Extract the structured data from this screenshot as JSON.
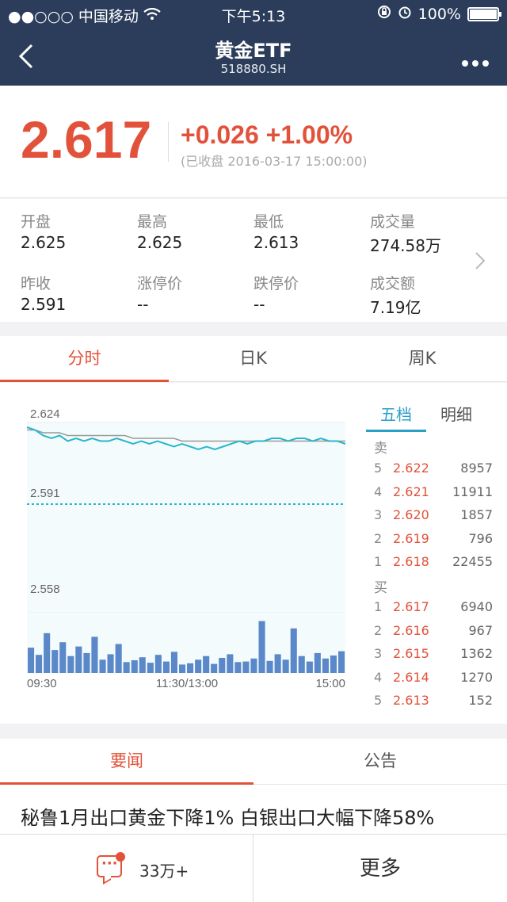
{
  "status_bar": {
    "carrier": "●●○○○ 中国移动",
    "time": "下午5:13",
    "battery": "100%",
    "battery_level": 1.0
  },
  "nav": {
    "title": "黄金ETF",
    "code": "518880.SH"
  },
  "quote": {
    "price": "2.617",
    "change": "+0.026 +1.00%",
    "status": "(已收盘 2016-03-17 15:00:00)"
  },
  "stats": [
    {
      "label": "开盘",
      "value": "2.625"
    },
    {
      "label": "最高",
      "value": "2.625"
    },
    {
      "label": "最低",
      "value": "2.613"
    },
    {
      "label": "成交量",
      "value": "274.58万"
    },
    {
      "label": "昨收",
      "value": "2.591"
    },
    {
      "label": "涨停价",
      "value": "--"
    },
    {
      "label": "跌停价",
      "value": "--"
    },
    {
      "label": "成交额",
      "value": "7.19亿"
    }
  ],
  "chart_tabs": [
    "分时",
    "日K",
    "周K"
  ],
  "chart_data": {
    "type": "line",
    "y_ticks": [
      "2.624",
      "2.591",
      "2.558"
    ],
    "x_ticks": [
      "09:30",
      "11:30/13:00",
      "15:00"
    ],
    "ylim": [
      2.558,
      2.624
    ],
    "prev_close": 2.591,
    "series": [
      {
        "values": [
          2.624,
          2.623,
          2.621,
          2.62,
          2.621,
          2.619,
          2.62,
          2.619,
          2.62,
          2.619,
          2.619,
          2.62,
          2.619,
          2.618,
          2.619,
          2.618,
          2.619,
          2.618,
          2.617,
          2.618,
          2.617,
          2.616,
          2.617,
          2.616,
          2.617,
          2.618,
          2.619,
          2.618,
          2.619,
          2.619,
          2.62,
          2.62,
          2.619,
          2.62,
          2.62,
          2.619,
          2.62,
          2.619,
          2.619,
          2.618
        ]
      },
      {
        "values": [
          2.623,
          2.623,
          2.622,
          2.622,
          2.622,
          2.621,
          2.621,
          2.621,
          2.621,
          2.621,
          2.621,
          2.621,
          2.621,
          2.62,
          2.62,
          2.62,
          2.62,
          2.62,
          2.62,
          2.619,
          2.619,
          2.619,
          2.619,
          2.619,
          2.619,
          2.619,
          2.619,
          2.619,
          2.619,
          2.619,
          2.619,
          2.619,
          2.619,
          2.619,
          2.619,
          2.619,
          2.619,
          2.619,
          2.619,
          2.619
        ]
      }
    ],
    "volume": [
      0.42,
      0.3,
      0.66,
      0.38,
      0.51,
      0.28,
      0.44,
      0.33,
      0.6,
      0.22,
      0.31,
      0.48,
      0.18,
      0.21,
      0.26,
      0.17,
      0.3,
      0.19,
      0.35,
      0.14,
      0.16,
      0.22,
      0.28,
      0.15,
      0.25,
      0.31,
      0.18,
      0.19,
      0.24,
      0.86,
      0.2,
      0.31,
      0.22,
      0.74,
      0.28,
      0.19,
      0.33,
      0.24,
      0.29,
      0.36
    ]
  },
  "orderbook": {
    "tabs": [
      "五档",
      "明细"
    ],
    "sell_label": "卖",
    "buy_label": "买",
    "sell": [
      {
        "level": "5",
        "price": "2.622",
        "volume": "8957"
      },
      {
        "level": "4",
        "price": "2.621",
        "volume": "11911"
      },
      {
        "level": "3",
        "price": "2.620",
        "volume": "1857"
      },
      {
        "level": "2",
        "price": "2.619",
        "volume": "796"
      },
      {
        "level": "1",
        "price": "2.618",
        "volume": "22455"
      }
    ],
    "buy": [
      {
        "level": "1",
        "price": "2.617",
        "volume": "6940"
      },
      {
        "level": "2",
        "price": "2.616",
        "volume": "967"
      },
      {
        "level": "3",
        "price": "2.615",
        "volume": "1362"
      },
      {
        "level": "4",
        "price": "2.614",
        "volume": "1270"
      },
      {
        "level": "5",
        "price": "2.613",
        "volume": "152"
      }
    ]
  },
  "news_tabs": [
    "要闻",
    "公告"
  ],
  "headline": "秘鲁1月出口黄金下降1% 白银出口大幅下降58%",
  "bottom_bar": {
    "comment_count": "33万+",
    "more_label": "更多"
  },
  "colors": {
    "header": "#2b3d5b",
    "up": "#e2523a",
    "line": "#2ab7c9",
    "avg": "#999999"
  }
}
